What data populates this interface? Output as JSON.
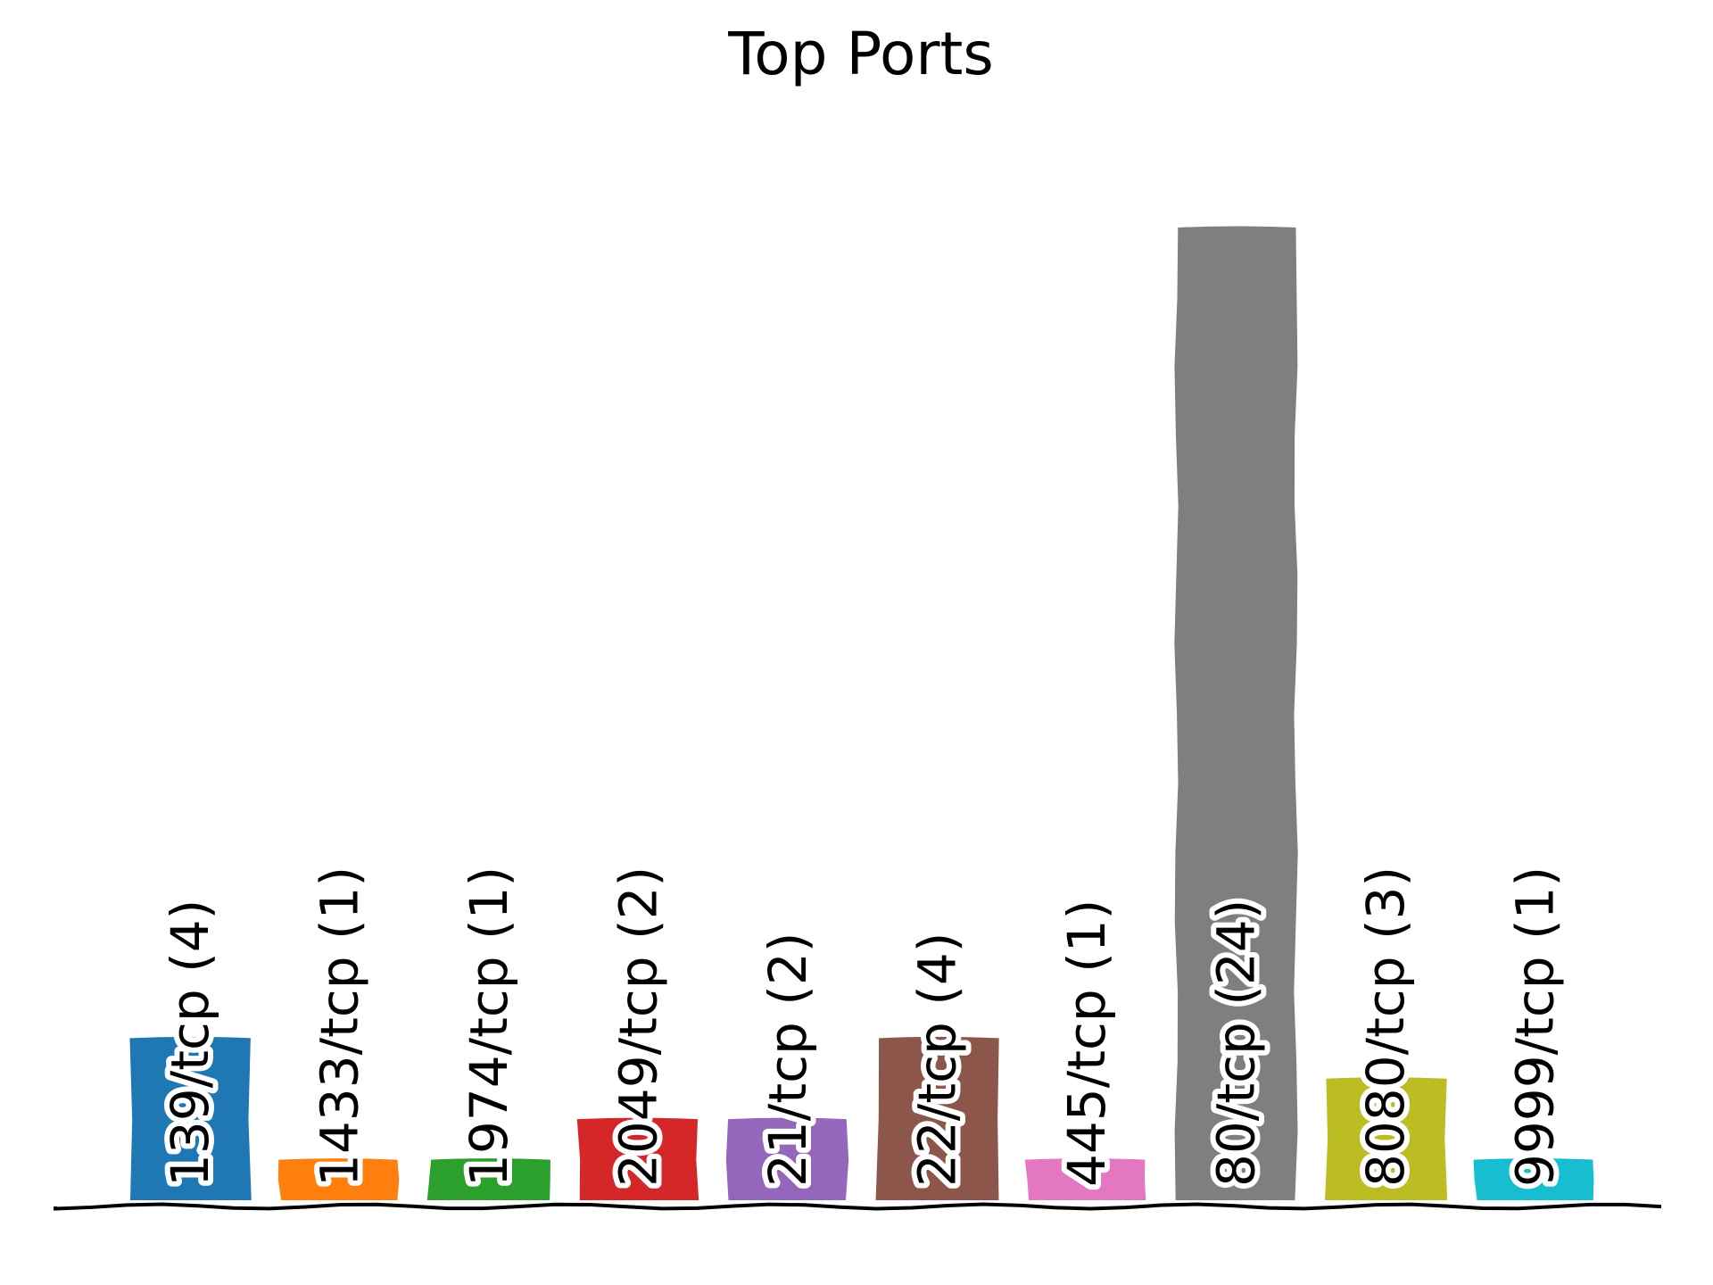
{
  "chart_data": {
    "type": "bar",
    "title": "Top Ports",
    "xlabel": "",
    "ylabel": "",
    "grid": false,
    "ylim": [
      0,
      25.2
    ],
    "categories": [
      "139/tcp",
      "1433/tcp",
      "1974/tcp",
      "2049/tcp",
      "21/tcp",
      "22/tcp",
      "445/tcp",
      "80/tcp",
      "8080/tcp",
      "9999/tcp"
    ],
    "values": [
      4,
      1,
      1,
      2,
      2,
      4,
      1,
      24,
      3,
      1
    ],
    "labels": [
      "139/tcp (4)",
      "1433/tcp (1)",
      "1974/tcp (1)",
      "2049/tcp (2)",
      "21/tcp (2)",
      "22/tcp (4)",
      "445/tcp (1)",
      "80/tcp (24)",
      "8080/tcp (3)",
      "9999/tcp (1)"
    ],
    "colors": [
      "#1f77b4",
      "#ff7f0e",
      "#2ca02c",
      "#d62728",
      "#9467bd",
      "#8c564b",
      "#e377c2",
      "#7f7f7f",
      "#bcbd22",
      "#17becf"
    ]
  }
}
